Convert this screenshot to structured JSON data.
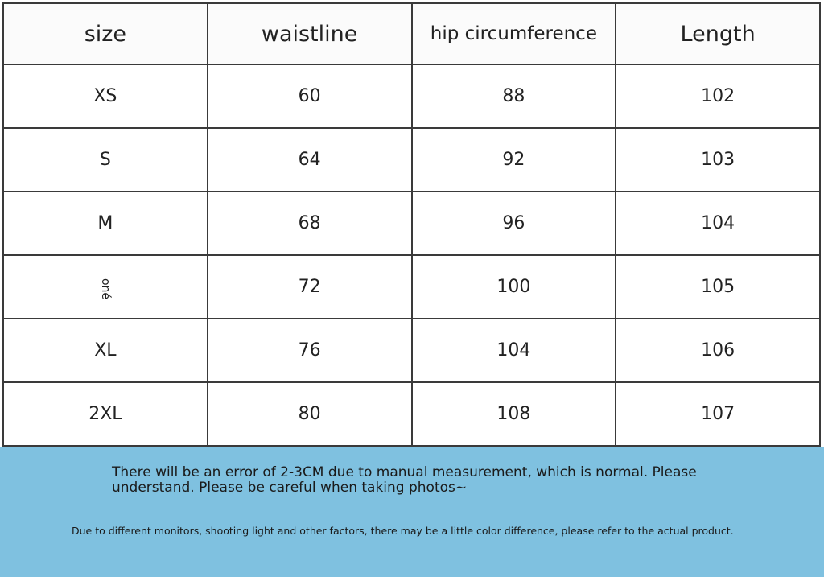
{
  "table": {
    "header": [
      "size",
      "waistline",
      "hip circumference",
      "Length"
    ],
    "rows": [
      [
        "XS",
        "60",
        "88",
        "102"
      ],
      [
        "S",
        "64",
        "92",
        "103"
      ],
      [
        "M",
        "68",
        "96",
        "104"
      ],
      [
        "oné",
        "72",
        "100",
        "105"
      ],
      [
        "XL",
        "76",
        "104",
        "106"
      ],
      [
        "2XL",
        "80",
        "108",
        "107"
      ]
    ]
  },
  "notes": [
    "There will be an error of 2-3CM due to manual measurement, which is normal. Please understand. Please be careful when taking photos~",
    "Due to different monitors, shooting light and other factors, there may be a little color difference, please refer to the actual product."
  ]
}
